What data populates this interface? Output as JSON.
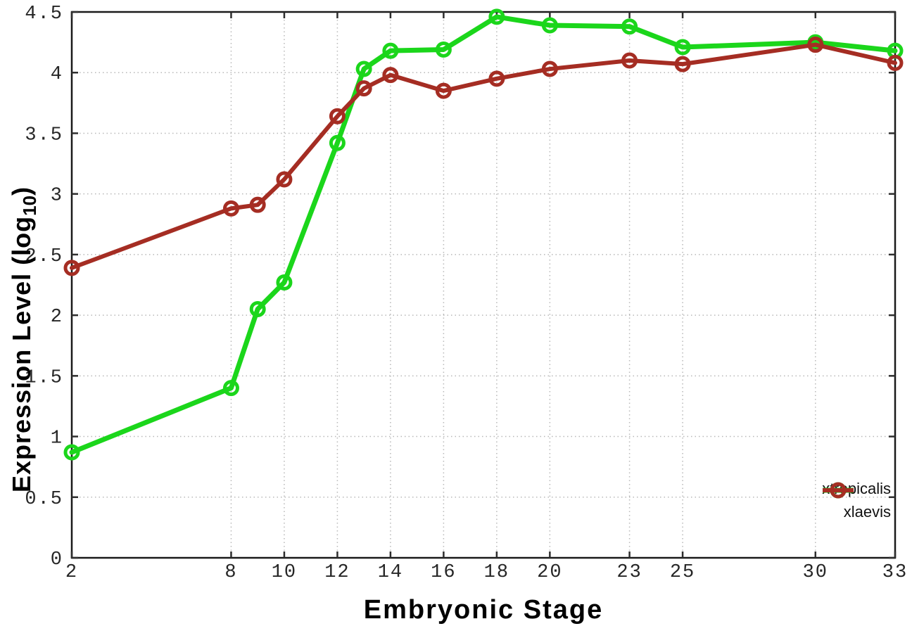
{
  "chart_data": {
    "type": "line",
    "title": "",
    "xlabel": "Embryonic Stage",
    "ylabel": "Expression Level (log10)",
    "ylabel_prefix": "Expression Level (log",
    "ylabel_sub": "10",
    "ylabel_suffix": ")",
    "xlim": [
      2,
      33
    ],
    "ylim": [
      0,
      4.5
    ],
    "grid": true,
    "legend_position": "bottom-right-inside",
    "x_ticks": [
      2,
      8,
      10,
      12,
      14,
      16,
      18,
      20,
      23,
      25,
      30,
      33
    ],
    "x_tick_labels": [
      "2",
      "8",
      "10",
      "12",
      "14",
      "16",
      "18",
      "20",
      "23",
      "25",
      "30",
      "33"
    ],
    "y_ticks": [
      0,
      0.5,
      1,
      1.5,
      2,
      2.5,
      3,
      3.5,
      4,
      4.5
    ],
    "y_tick_labels": [
      "0",
      "0.5",
      "1",
      "1.5",
      "2",
      "2.5",
      "3",
      "3.5",
      "4",
      "4.5"
    ],
    "x": [
      2,
      8,
      9,
      10,
      12,
      13,
      14,
      16,
      18,
      20,
      23,
      25,
      30,
      33
    ],
    "series": [
      {
        "name": "xtropicalis",
        "color": "#1bd61b",
        "line_width": 7,
        "marker": "open-circle",
        "values": [
          0.87,
          1.4,
          2.05,
          2.27,
          3.42,
          4.03,
          4.18,
          4.19,
          4.46,
          4.39,
          4.38,
          4.21,
          4.25,
          4.18
        ]
      },
      {
        "name": "xlaevis",
        "color": "#a52d23",
        "line_width": 6,
        "marker": "open-circle",
        "values": [
          2.39,
          2.88,
          2.91,
          3.12,
          3.64,
          3.87,
          3.98,
          3.85,
          3.95,
          4.03,
          4.1,
          4.07,
          4.23,
          4.08
        ]
      }
    ],
    "colors": {
      "border": "#1a1a1a",
      "tick": "#2e2e2e",
      "tick_text": "#262626",
      "grid": "#b8b8b8",
      "background": "#ffffff"
    }
  }
}
